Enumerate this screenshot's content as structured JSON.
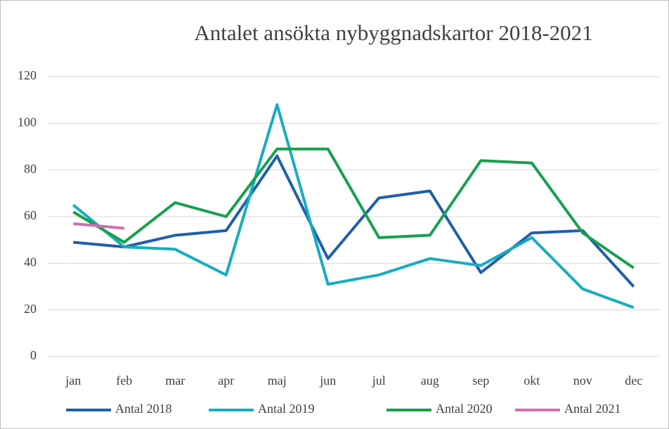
{
  "chart_data": {
    "type": "line",
    "title": "Antalet ansökta nybyggnadskartor 2018-2021",
    "categories": [
      "jan",
      "feb",
      "mar",
      "apr",
      "maj",
      "jun",
      "jul",
      "aug",
      "sep",
      "okt",
      "nov",
      "dec"
    ],
    "series": [
      {
        "name": "Antal 2018",
        "color": "#1f5fa8",
        "values": [
          49,
          47,
          52,
          54,
          86,
          42,
          68,
          71,
          36,
          53,
          54,
          30
        ]
      },
      {
        "name": "Antal 2019",
        "color": "#17adc1",
        "values": [
          65,
          47,
          46,
          35,
          108,
          31,
          35,
          42,
          39,
          51,
          29,
          21
        ]
      },
      {
        "name": "Antal 2020",
        "color": "#17a04e",
        "values": [
          62,
          49,
          66,
          60,
          89,
          89,
          51,
          52,
          84,
          83,
          53,
          38
        ]
      },
      {
        "name": "Antal 2021",
        "color": "#cf6fad",
        "values": [
          57,
          55,
          null,
          null,
          null,
          null,
          null,
          null,
          null,
          null,
          null,
          null
        ]
      }
    ],
    "ylim": [
      0,
      120
    ],
    "yticks": [
      0,
      20,
      40,
      60,
      80,
      100,
      120
    ],
    "grid": true,
    "legend": "bottom"
  }
}
